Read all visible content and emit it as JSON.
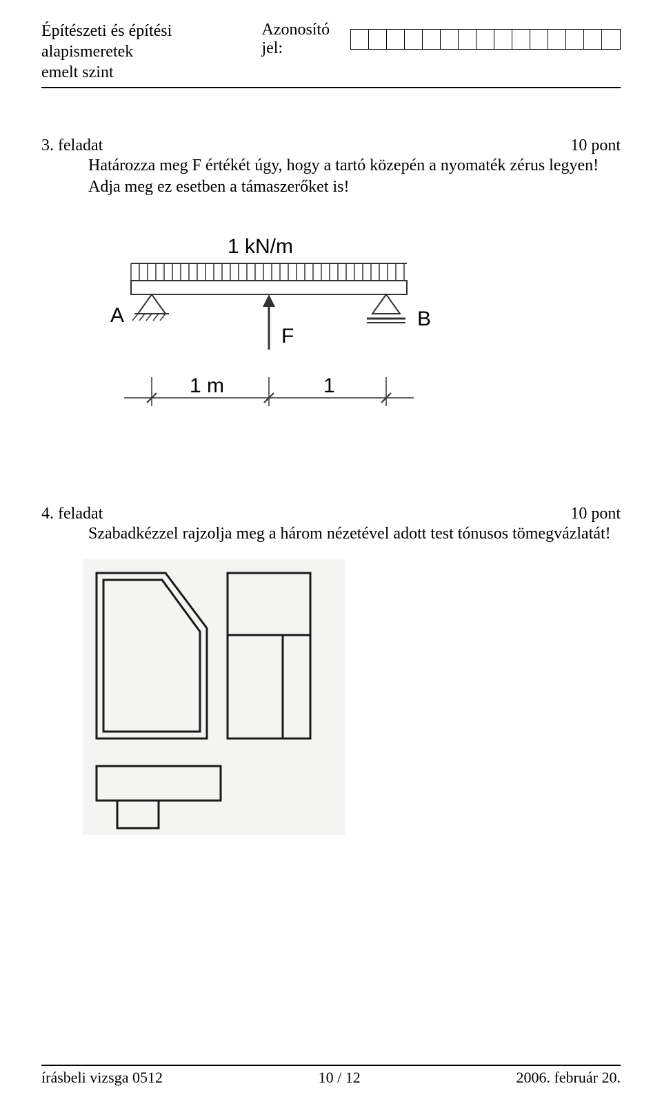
{
  "header": {
    "line1": "Építészeti és építési alapismeretek",
    "line2": "emelt szint",
    "id_label": "Azonosító jel:",
    "id_box_count": 15
  },
  "task3": {
    "title": "3. feladat",
    "points": "10 pont",
    "body": "Határozza meg F értékét úgy, hogy a tartó közepén a nyomaték zérus legyen! Adja meg ez esetben a támaszerőket is!",
    "diagram": {
      "load_label": "1 kN/m",
      "support_left_label": "A",
      "support_right_label": "B",
      "force_label": "F",
      "dim_left": "1 m",
      "dim_right": "1",
      "stroke": "#333333",
      "thin_stroke": "#888888",
      "bg": "#ffffff",
      "font_family": "Arial, Helvetica, sans-serif",
      "label_fontsize": 30
    }
  },
  "task4": {
    "title": "4. feladat",
    "points": "10 pont",
    "body": "Szabadkézzel rajzolja meg a három nézetével adott test tónusos tömegvázlatát!",
    "views_svg": {
      "stroke": "#1a1a1a",
      "bg": "#f4f4f2",
      "line_width": 3
    }
  },
  "footer": {
    "left": "írásbeli vizsga 0512",
    "center": "10 / 12",
    "right": "2006. február 20."
  }
}
